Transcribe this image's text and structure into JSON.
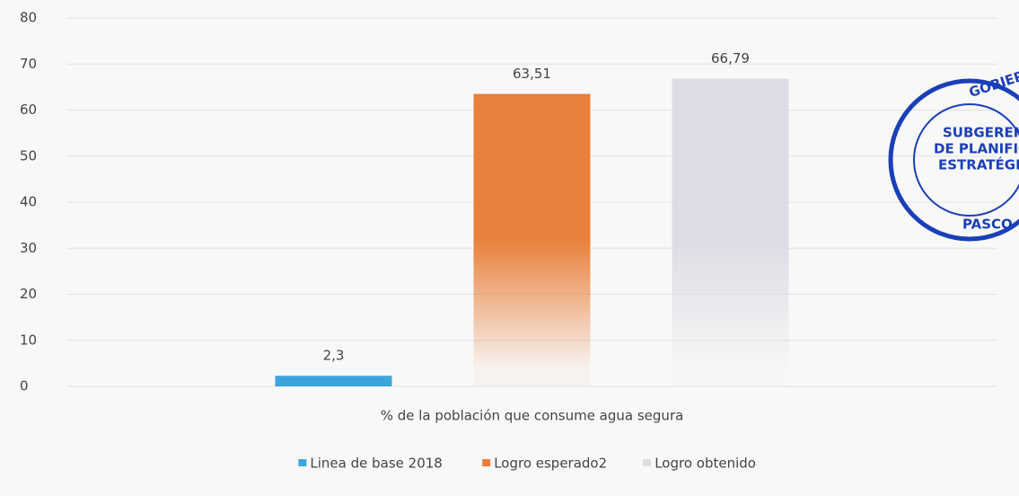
{
  "chart_data": {
    "type": "bar",
    "categories": [
      "% de la población que consume agua segura"
    ],
    "series": [
      {
        "name": "Linea de base 2018",
        "color": "#3ea5dc",
        "fade": false,
        "values": [
          2.3
        ],
        "value_labels": [
          "2,3"
        ]
      },
      {
        "name": "Logro esperado2",
        "color": "#e9803b",
        "fade": true,
        "values": [
          63.51
        ],
        "value_labels": [
          "63,51"
        ]
      },
      {
        "name": "Logro obtenido",
        "color": "#dcdde4",
        "fade": true,
        "values": [
          66.79
        ],
        "value_labels": [
          "66,79"
        ]
      }
    ],
    "ylim": [
      0,
      80
    ],
    "yticks": [
      0,
      10,
      20,
      30,
      40,
      50,
      60,
      70,
      80
    ],
    "grid": true,
    "legend": "bottom"
  },
  "stamp": {
    "top": "GOBIERNO RE",
    "middle": [
      "SUBGERENCIA",
      "DE PLANIFICACIÓN",
      "ESTRATÉGICA"
    ],
    "bottom": "PASCO"
  }
}
